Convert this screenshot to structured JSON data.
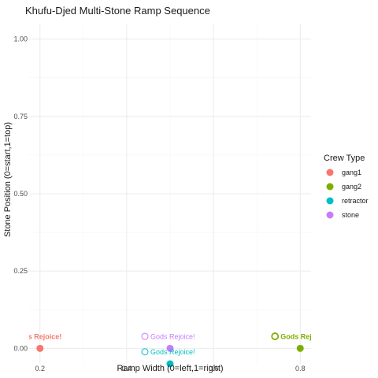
{
  "chart_data": {
    "type": "scatter",
    "title": "Khufu-Djed Multi-Stone Ramp Sequence",
    "xlabel": "Ramp Width (0=left,1=right)",
    "ylabel": "Stone Position (0=start,1=top)",
    "xlim": [
      0.175,
      0.825
    ],
    "ylim": [
      -0.05,
      1.05
    ],
    "x_ticks": [
      {
        "value": 0.2,
        "label": "0.2"
      },
      {
        "value": 0.4,
        "label": "0.4"
      },
      {
        "value": 0.6,
        "label": "0.6"
      },
      {
        "value": 0.8,
        "label": "0.8"
      }
    ],
    "y_ticks": [
      {
        "value": 0.0,
        "label": "0.00"
      },
      {
        "value": 0.25,
        "label": "0.25"
      },
      {
        "value": 0.5,
        "label": "0.50"
      },
      {
        "value": 0.75,
        "label": "0.75"
      },
      {
        "value": 1.0,
        "label": "1.00"
      }
    ],
    "grid": true,
    "legend": {
      "title": "Crew Type",
      "position": "right",
      "entries": [
        {
          "name": "gang1",
          "color": "#F8766D"
        },
        {
          "name": "gang2",
          "color": "#7CAE00"
        },
        {
          "name": "retractor",
          "color": "#00BFC4"
        },
        {
          "name": "stone",
          "color": "#C77CFF"
        }
      ]
    },
    "series": [
      {
        "name": "gang1",
        "color": "#F8766D",
        "points": [
          {
            "x": 0.2,
            "y": 0.0
          }
        ]
      },
      {
        "name": "gang2",
        "color": "#7CAE00",
        "points": [
          {
            "x": 0.8,
            "y": 0.0
          }
        ]
      },
      {
        "name": "retractor",
        "color": "#00BFC4",
        "points": [
          {
            "x": 0.5,
            "y": -0.05
          }
        ]
      },
      {
        "name": "stone",
        "color": "#C77CFF",
        "points": [
          {
            "x": 0.5,
            "y": 0.0
          }
        ]
      }
    ],
    "annotations": [
      {
        "text": "Gods Rejoice!",
        "series": "gang1",
        "x": 0.2,
        "y": 0.03,
        "bold": true,
        "icon": false
      },
      {
        "text": "Gods Rejoice!",
        "series": "gang2",
        "x": 0.8,
        "y": 0.03,
        "bold": true,
        "icon": true
      },
      {
        "text": "Gods Rejoice!",
        "series": "stone",
        "x": 0.5,
        "y": 0.03,
        "bold": false,
        "icon": true
      },
      {
        "text": "Gods Rejoice!",
        "series": "retractor",
        "x": 0.5,
        "y": -0.02,
        "bold": false,
        "icon": true
      }
    ]
  }
}
